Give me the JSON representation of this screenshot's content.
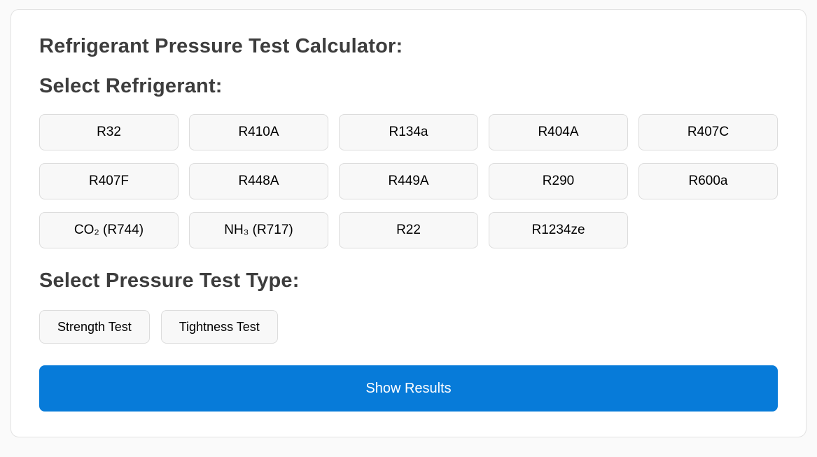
{
  "app": {
    "title": "Refrigerant Pressure Test Calculator:"
  },
  "refrigerant_section": {
    "heading": "Select Refrigerant:",
    "options": [
      "R32",
      "R410A",
      "R134a",
      "R404A",
      "R407C",
      "R407F",
      "R448A",
      "R449A",
      "R290",
      "R600a",
      "CO₂ (R744)",
      "NH₃ (R717)",
      "R22",
      "R1234ze"
    ]
  },
  "test_type_section": {
    "heading": "Select Pressure Test Type:",
    "options": [
      "Strength Test",
      "Tightness Test"
    ]
  },
  "actions": {
    "show_results_label": "Show Results"
  },
  "colors": {
    "primary_blue": "#077bd9",
    "heading_text": "#3d3d3d",
    "button_bg": "#f8f8f8",
    "button_border": "#dcdcdc",
    "card_border": "#e2e2e2",
    "page_bg": "#fafafa",
    "button_text": "#000000",
    "show_results_text": "#ffffff"
  }
}
